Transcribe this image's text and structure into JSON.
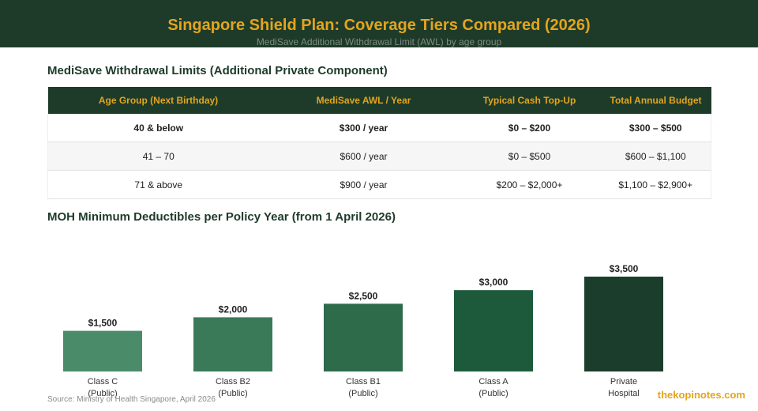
{
  "header": {
    "title": "Singapore Shield Plan: Coverage Tiers Compared (2026)",
    "subtitle": "MediSave Additional Withdrawal Limit (AWL) by age group"
  },
  "table_section": {
    "title": "MediSave Withdrawal Limits (Additional Private Component)",
    "columns": [
      "Age Group (Next Birthday)",
      "MediSave AWL / Year",
      "Typical Cash Top-Up",
      "Total Annual Budget"
    ],
    "rows": [
      [
        "40 & below",
        "$300 / year",
        "$0 – $200",
        "$300 – $500"
      ],
      [
        "41 – 70",
        "$600 / year",
        "$0 – $500",
        "$600 – $1,100"
      ],
      [
        "71 & above",
        "$900 / year",
        "$200 – $2,000+",
        "$1,100 – $2,900+"
      ]
    ]
  },
  "chart_section": {
    "title": "MOH Minimum Deductibles per Policy Year (from 1 April 2026)"
  },
  "chart_data": {
    "type": "bar",
    "categories": [
      "Class C\n(Public)",
      "Class B2\n(Public)",
      "Class B1\n(Public)",
      "Class A\n(Public)",
      "Private\nHospital"
    ],
    "values": [
      1500,
      2000,
      2500,
      3000,
      3500
    ],
    "data_labels": [
      "$1,500",
      "$2,000",
      "$2,500",
      "$3,000",
      "$3,500"
    ],
    "colors": [
      "#4a8c69",
      "#3a7a58",
      "#2d6b4b",
      "#1d5a3c",
      "#1b3d2b"
    ],
    "ylim": [
      0,
      3500
    ],
    "grid": false
  },
  "footer": {
    "source": "Source: Ministry of Health Singapore, April 2026",
    "brand": "thekopinotes.com"
  }
}
